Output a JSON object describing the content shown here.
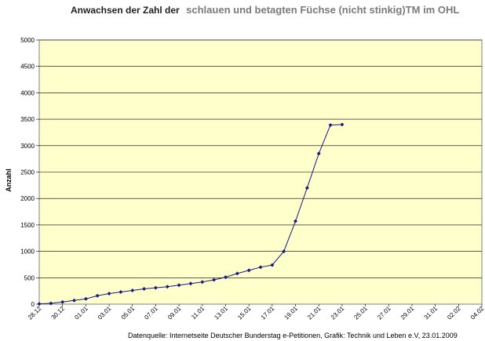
{
  "chart_data": {
    "type": "line",
    "title_part1": "Anwachsen der Zahl der",
    "title_part2": "schlauen und betagten Füchse (nicht stinkig)TM im OHL",
    "ylabel": "Anzahl",
    "xlabel": "",
    "ylim": [
      0,
      5000
    ],
    "yticks": [
      "0",
      "500",
      "1000",
      "1500",
      "2000",
      "2500",
      "3000",
      "3500",
      "4000",
      "4500",
      "5000"
    ],
    "xtick_labels": [
      "28.12",
      "30.12",
      "01.01",
      "03.01",
      "05.01",
      "07.01",
      "09.01",
      "11.01",
      "13.01",
      "15.01",
      "17.01",
      "19.01",
      "21.01",
      "23.01",
      "25.01",
      "27.01",
      "29.01",
      "31.01",
      "02.02",
      "04.02"
    ],
    "x_start_day": 0,
    "x_end_day": 38,
    "series": [
      {
        "color": "#1a1a80",
        "x": [
          0,
          1,
          2,
          3,
          4,
          5,
          6,
          7,
          8,
          9,
          10,
          11,
          12,
          13,
          14,
          15,
          16,
          17,
          18,
          19,
          20,
          21,
          22,
          23,
          24,
          25,
          26
        ],
        "y": [
          5,
          15,
          40,
          70,
          100,
          160,
          200,
          230,
          260,
          290,
          310,
          330,
          360,
          390,
          420,
          460,
          510,
          580,
          640,
          700,
          740,
          1000,
          1570,
          2200,
          2850,
          3390,
          3400
        ]
      }
    ],
    "grid": true,
    "plot_background": "#ffffcc",
    "legend": "none"
  },
  "footer": "Datenquelle: Internetseite Deutscher Bunderstag e-Petitionen, Grafik: Technik und Leben e.V, 23.01.2009"
}
